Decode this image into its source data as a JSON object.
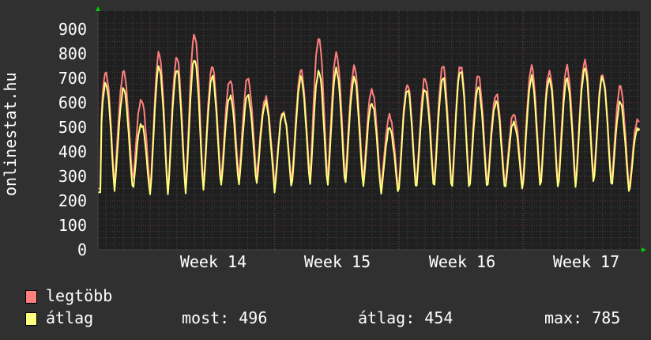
{
  "chart_data": {
    "type": "line",
    "title": "",
    "vertical_label": "onlinestat.hu",
    "ylim": [
      0,
      900
    ],
    "yticks": [
      0,
      100,
      200,
      300,
      400,
      500,
      600,
      700,
      800,
      900
    ],
    "xtick_labels": [
      "Week 14",
      "Week 15",
      "Week 16",
      "Week 17"
    ],
    "grid": true,
    "legend_placement": "bottom-left",
    "series": [
      {
        "name": "legtöbb",
        "color": "#ff7f7f",
        "daily_peaks": [
          725,
          725,
          615,
          800,
          785,
          880,
          745,
          695,
          700,
          620,
          565,
          730,
          865,
          800,
          745,
          655,
          545,
          675,
          700,
          750,
          755,
          710,
          635,
          555,
          745,
          730,
          745,
          770,
          715,
          665,
          535
        ],
        "daily_troughs": [
          250,
          300,
          255,
          240,
          245,
          255,
          265,
          290,
          300,
          300,
          255,
          305,
          290,
          285,
          295,
          275,
          240,
          255,
          265,
          265,
          255,
          265,
          265,
          260,
          270,
          265,
          265,
          290,
          290,
          255,
          245
        ]
      },
      {
        "name": "átlag",
        "color": "#ffff7f",
        "daily_peaks": [
          680,
          655,
          515,
          745,
          735,
          780,
          705,
          630,
          630,
          600,
          560,
          700,
          730,
          735,
          700,
          600,
          495,
          655,
          655,
          700,
          735,
          660,
          605,
          520,
          700,
          700,
          695,
          740,
          705,
          600,
          500
        ],
        "daily_troughs": [
          235,
          260,
          225,
          225,
          230,
          240,
          245,
          265,
          265,
          270,
          230,
          275,
          260,
          255,
          265,
          250,
          220,
          235,
          245,
          245,
          235,
          245,
          245,
          240,
          250,
          245,
          245,
          270,
          265,
          235,
          230
        ]
      }
    ]
  },
  "legend": {
    "items": [
      {
        "label": "legtöbb",
        "color": "#ff7f7f"
      },
      {
        "label": "átlag",
        "color": "#ffff7f"
      }
    ],
    "stats": {
      "now_label": "most: 496",
      "avg_label": "átlag: 454",
      "max_label": "max: 785"
    }
  }
}
